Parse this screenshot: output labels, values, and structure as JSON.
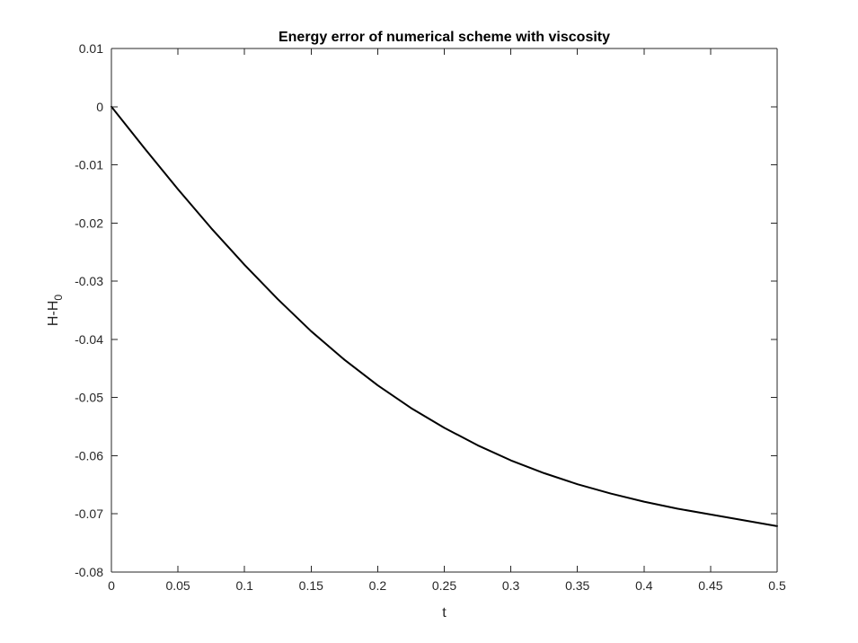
{
  "chart_data": {
    "type": "line",
    "title": "Energy error of numerical scheme with viscosity",
    "xlabel": "t",
    "ylabel": "H-H",
    "ylabel_subscript": "0",
    "xlim": [
      0,
      0.5
    ],
    "ylim": [
      -0.08,
      0.01
    ],
    "xticks": [
      0,
      0.05,
      0.1,
      0.15,
      0.2,
      0.25,
      0.3,
      0.35,
      0.4,
      0.45,
      0.5
    ],
    "xtick_labels": [
      "0",
      "0.05",
      "0.1",
      "0.15",
      "0.2",
      "0.25",
      "0.3",
      "0.35",
      "0.4",
      "0.45",
      "0.5"
    ],
    "yticks": [
      0.01,
      0,
      -0.01,
      -0.02,
      -0.03,
      -0.04,
      -0.05,
      -0.06,
      -0.07,
      -0.08
    ],
    "ytick_labels": [
      "0.01",
      "0",
      "-0.01",
      "-0.02",
      "-0.03",
      "-0.04",
      "-0.05",
      "-0.06",
      "-0.07",
      "-0.08"
    ],
    "grid": false,
    "series": [
      {
        "color": "#000000",
        "x": [
          0,
          0.025,
          0.05,
          0.075,
          0.1,
          0.125,
          0.15,
          0.175,
          0.2,
          0.225,
          0.25,
          0.275,
          0.3,
          0.325,
          0.35,
          0.375,
          0.4,
          0.425,
          0.45,
          0.475,
          0.5
        ],
        "y": [
          0,
          -0.0072,
          -0.0142,
          -0.0209,
          -0.0272,
          -0.0331,
          -0.0386,
          -0.0435,
          -0.0479,
          -0.0518,
          -0.0552,
          -0.0582,
          -0.0608,
          -0.063,
          -0.0649,
          -0.0665,
          -0.0679,
          -0.0691,
          -0.0701,
          -0.0711,
          -0.0721
        ]
      }
    ]
  }
}
